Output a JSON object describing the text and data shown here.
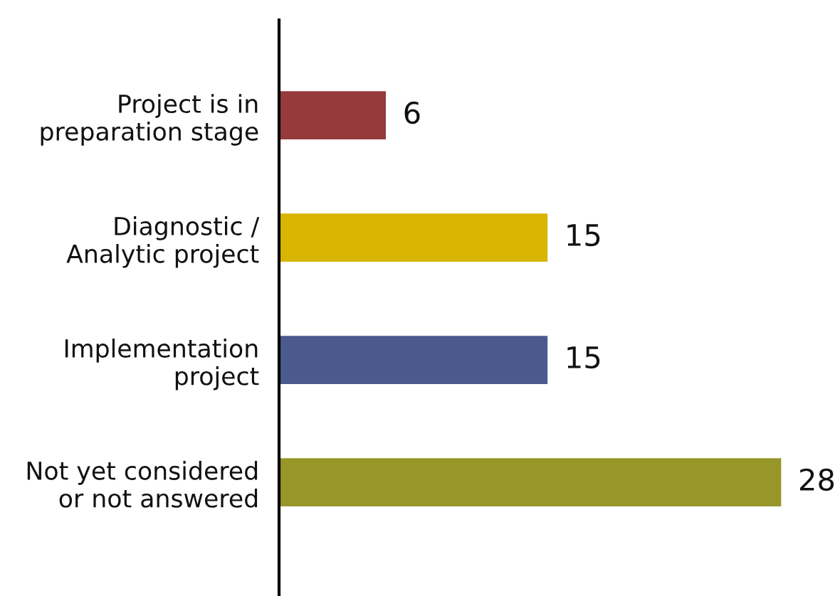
{
  "chart_data": {
    "type": "bar",
    "orientation": "horizontal",
    "categories": [
      "Project is in\npreparation stage",
      "Diagnostic /\nAnalytic project",
      "Implementation\nproject",
      "Not yet considered\nor not answered"
    ],
    "values": [
      6,
      15,
      15,
      28
    ],
    "colors": [
      "#963a3b",
      "#d8b500",
      "#4a5a8c",
      "#979629"
    ],
    "data_labels": true,
    "grid": false,
    "legend": false
  }
}
